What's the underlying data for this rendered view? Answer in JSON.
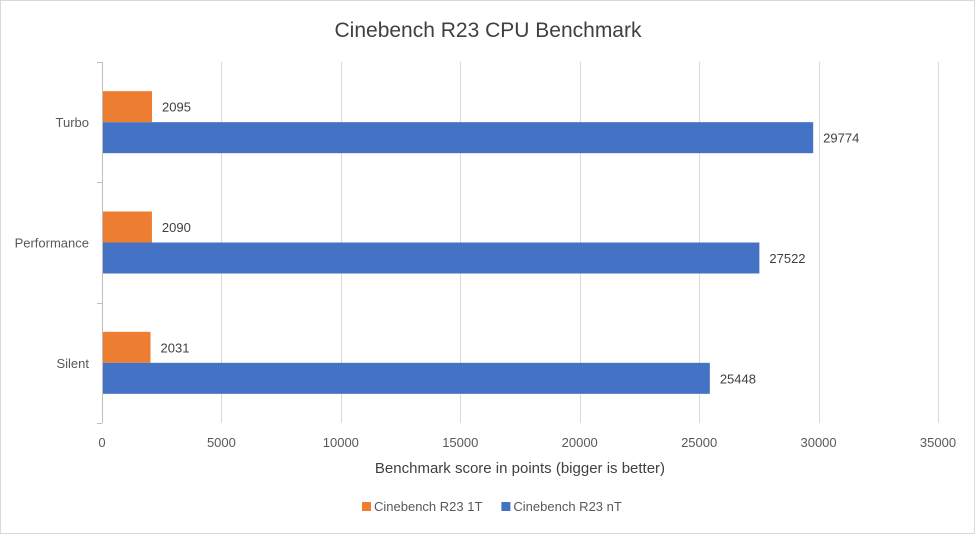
{
  "chart_data": {
    "type": "bar",
    "orientation": "horizontal",
    "title": "Cinebench R23 CPU Benchmark",
    "xlabel": "Benchmark score in points (bigger is better)",
    "ylabel": "",
    "categories": [
      "Turbo",
      "Performance",
      "Silent"
    ],
    "series": [
      {
        "name": "Cinebench R23 1T",
        "color": "#ED7D31",
        "values": [
          2095,
          2090,
          2031
        ]
      },
      {
        "name": "Cinebench R23 nT",
        "color": "#4472C4",
        "values": [
          29774,
          27522,
          25448
        ]
      }
    ],
    "xlim": [
      0,
      35000
    ],
    "xticks": [
      0,
      5000,
      10000,
      15000,
      20000,
      25000,
      30000,
      35000
    ],
    "grid": true,
    "legend_position": "bottom",
    "data_labels": true
  }
}
